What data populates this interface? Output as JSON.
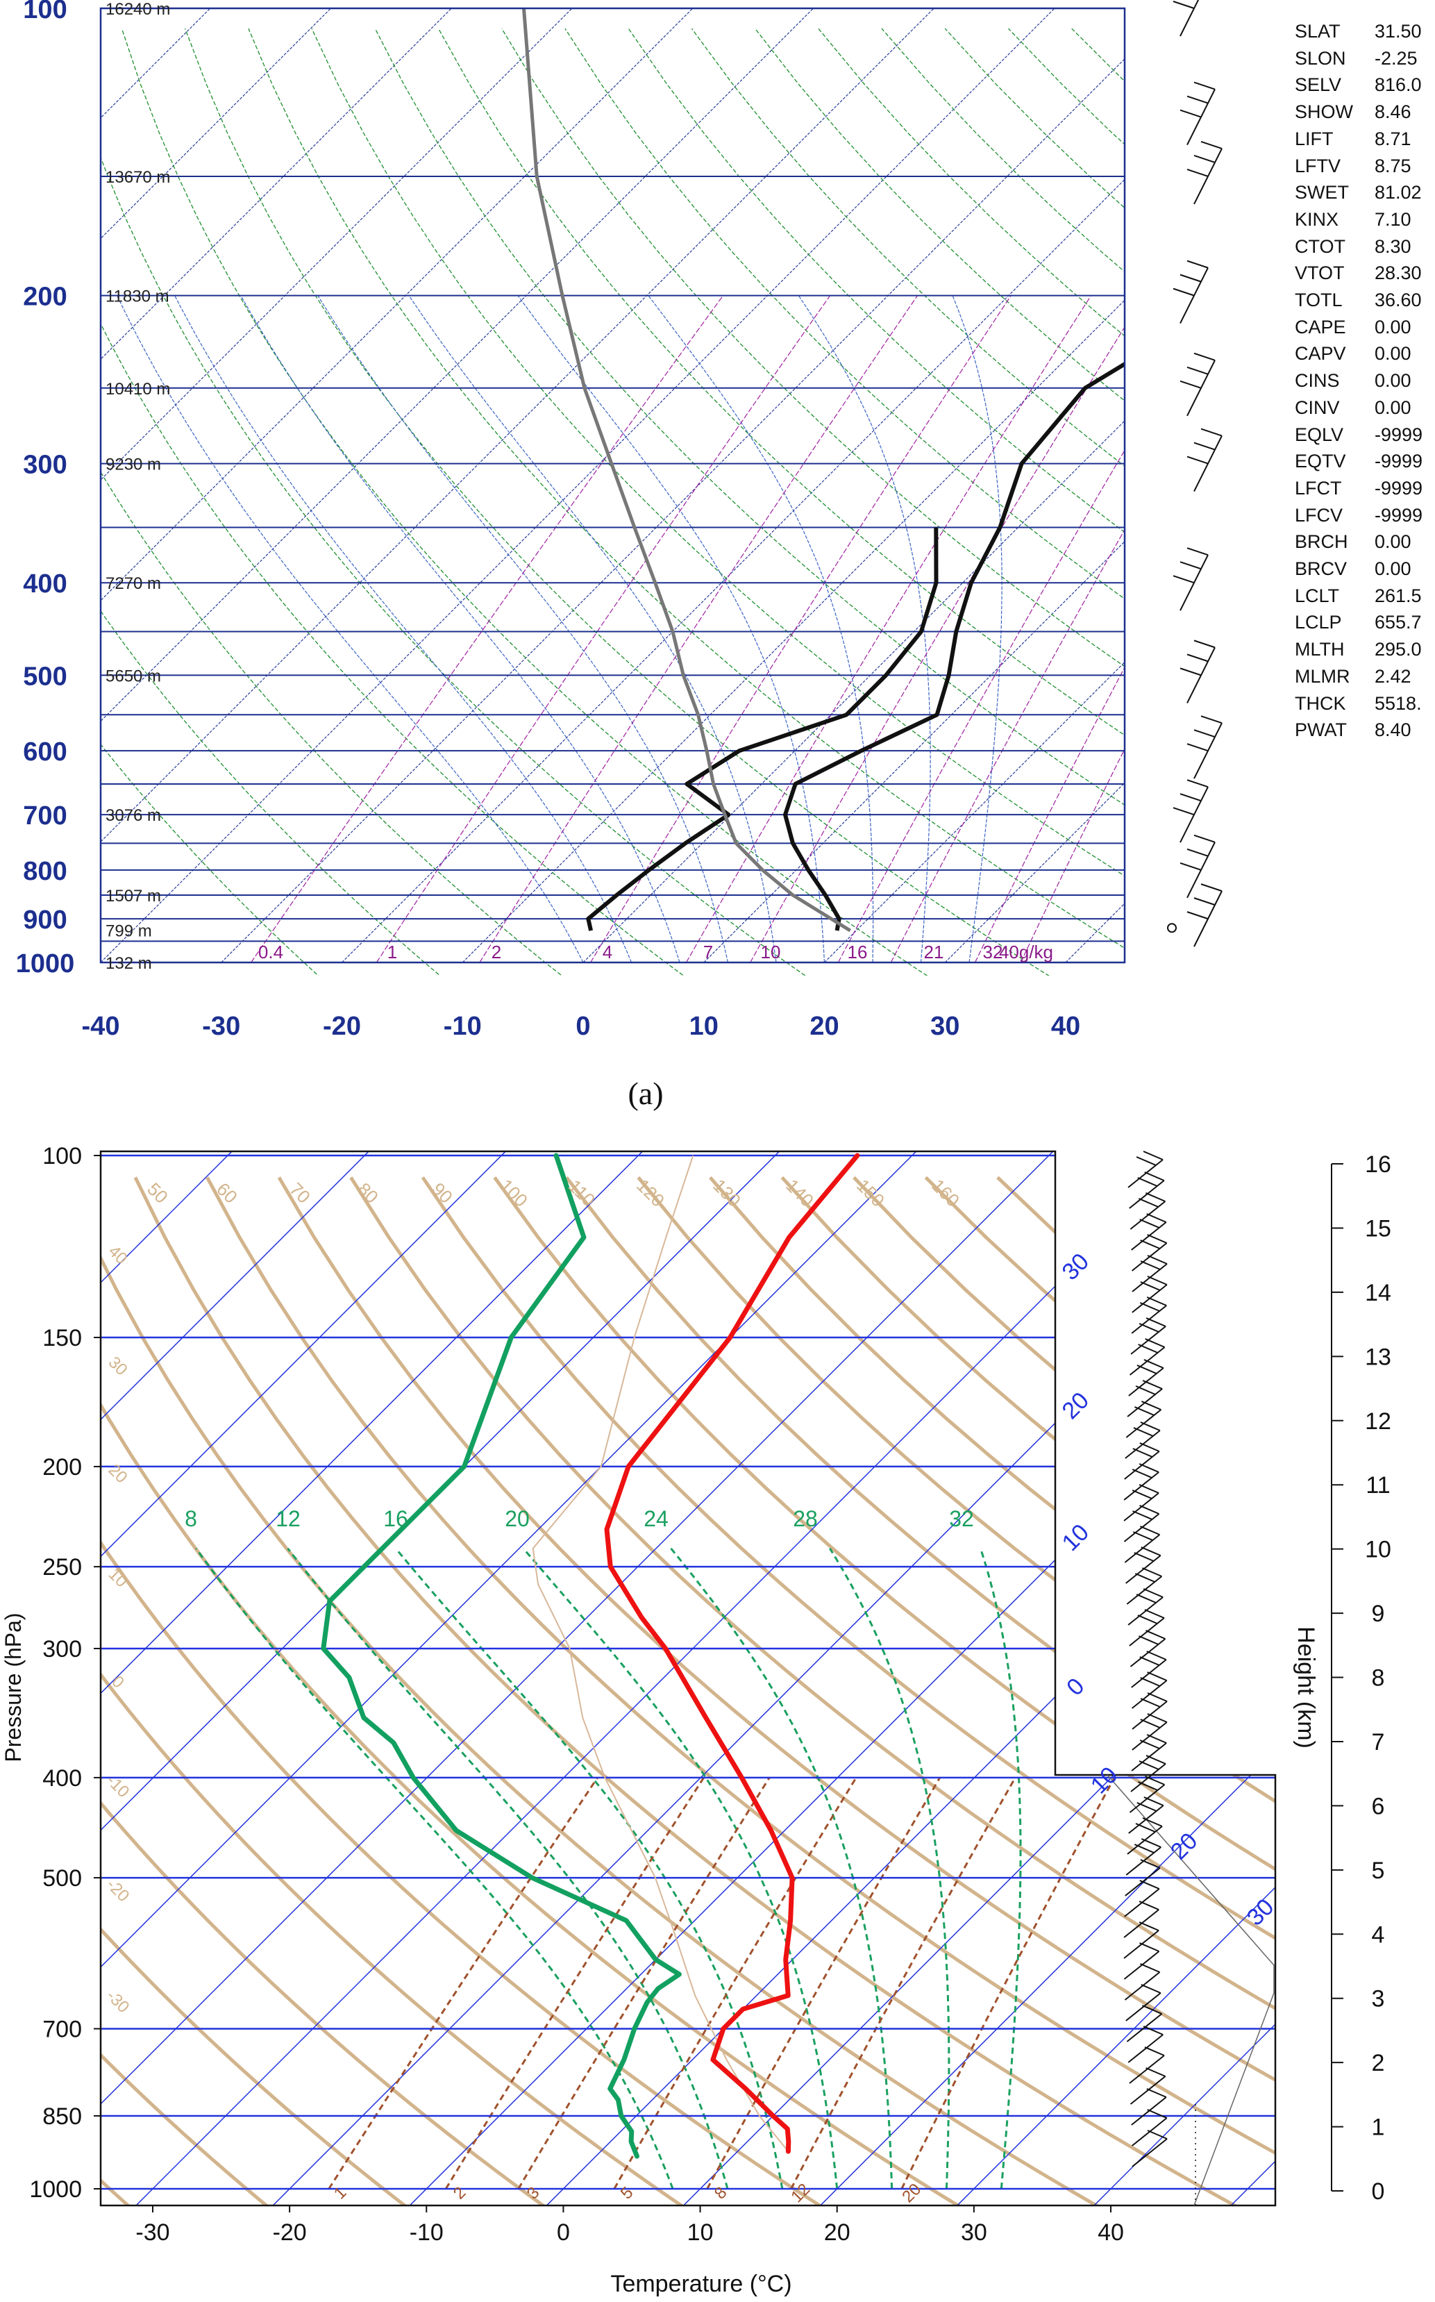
{
  "panel_a": {
    "caption": "(a)",
    "y_ticks": [
      "100",
      "200",
      "300",
      "400",
      "500",
      "600",
      "700",
      "800",
      "900",
      "1000"
    ],
    "x_ticks": [
      "-40",
      "-30",
      "-20",
      "-10",
      "0",
      "10",
      "20",
      "30",
      "40"
    ],
    "height_labels": [
      "16240 m",
      "13670 m",
      "11830 m",
      "10410 m",
      "9230 m",
      "7270 m",
      "5650 m",
      "3076 m",
      "1507 m",
      "799 m",
      "132 m"
    ],
    "mixing_labels": [
      "0.4",
      "1",
      "2",
      "4",
      "7",
      "10",
      "16",
      "21",
      "32",
      "40g/kg"
    ],
    "indices": [
      {
        "k": "SLAT",
        "v": "31.50"
      },
      {
        "k": "SLON",
        "v": "-2.25"
      },
      {
        "k": "SELV",
        "v": "816.0"
      },
      {
        "k": "SHOW",
        "v": "8.46"
      },
      {
        "k": "LIFT",
        "v": "8.71"
      },
      {
        "k": "LFTV",
        "v": "8.75"
      },
      {
        "k": "SWET",
        "v": "81.02"
      },
      {
        "k": "KINX",
        "v": "7.10"
      },
      {
        "k": "CTOT",
        "v": "8.30"
      },
      {
        "k": "VTOT",
        "v": "28.30"
      },
      {
        "k": "TOTL",
        "v": "36.60"
      },
      {
        "k": "CAPE",
        "v": "0.00"
      },
      {
        "k": "CAPV",
        "v": "0.00"
      },
      {
        "k": "CINS",
        "v": "0.00"
      },
      {
        "k": "CINV",
        "v": "0.00"
      },
      {
        "k": "EQLV",
        "v": "-9999"
      },
      {
        "k": "EQTV",
        "v": "-9999"
      },
      {
        "k": "LFCT",
        "v": "-9999"
      },
      {
        "k": "LFCV",
        "v": "-9999"
      },
      {
        "k": "BRCH",
        "v": "0.00"
      },
      {
        "k": "BRCV",
        "v": "0.00"
      },
      {
        "k": "LCLT",
        "v": "261.5"
      },
      {
        "k": "LCLP",
        "v": "655.7"
      },
      {
        "k": "MLTH",
        "v": "295.0"
      },
      {
        "k": "MLMR",
        "v": "2.42"
      },
      {
        "k": "THCK",
        "v": "5518."
      },
      {
        "k": "PWAT",
        "v": "8.40"
      }
    ]
  },
  "panel_b": {
    "y_ticks": [
      "100",
      "150",
      "200",
      "250",
      "300",
      "400",
      "500",
      "700",
      "850",
      "1000"
    ],
    "x_ticks": [
      "-30",
      "-20",
      "-10",
      "0",
      "10",
      "20",
      "30",
      "40"
    ],
    "ylabel": "Pressure (hPa)",
    "xlabel": "Temperature (°C)",
    "height_axis_label": "Height (km)",
    "height_ticks": [
      "16",
      "15",
      "14",
      "13",
      "12",
      "11",
      "10",
      "9",
      "8",
      "7",
      "6",
      "5",
      "4",
      "3",
      "2",
      "1",
      "0"
    ],
    "theta_labels": [
      "50",
      "60",
      "70",
      "80",
      "90",
      "100",
      "110",
      "120",
      "130",
      "140",
      "150",
      "160"
    ],
    "theta_left_labels": [
      "40",
      "30",
      "20",
      "10",
      "0",
      "-10",
      "-20",
      "-30"
    ],
    "theta_e_labels": [
      "8",
      "12",
      "16",
      "20",
      "24",
      "28",
      "32"
    ],
    "mixing_labels": [
      "1",
      "2",
      "3",
      "5",
      "8",
      "12",
      "20"
    ],
    "isotherm_labels": [
      "30",
      "20",
      "10",
      "0"
    ],
    "hodo_labels": [
      "10",
      "20",
      "30"
    ]
  },
  "chart_data": [
    {
      "type": "line",
      "subtype": "skew-T log-p diagram",
      "xlim": [
        -40,
        45
      ],
      "ylim": [
        1000,
        100
      ],
      "y_scale": "log",
      "grid": true,
      "series": [
        {
          "pressure": [
            926,
            900,
            850,
            800,
            750,
            700,
            650,
            600,
            550,
            500,
            450,
            400,
            350,
            300,
            250,
            200,
            150,
            100
          ],
          "values": [
            18.4,
            17.6,
            14.5,
            11,
            7.5,
            4.5,
            2.8,
            5.5,
            8.8,
            6.5,
            3.5,
            0.7,
            -1.5,
            -5,
            -6,
            -1,
            6,
            22.5
          ]
        },
        {
          "pressure": [
            926,
            900,
            850,
            800,
            750,
            700,
            650,
            600,
            550,
            500,
            450,
            400,
            350
          ],
          "values": [
            -2,
            -3.2,
            -2.8,
            -2.2,
            -1.4,
            -0.2,
            -6.2,
            -4.6,
            1.3,
            1.3,
            0.6,
            -2.2,
            -6.8
          ]
        },
        {
          "pressure": [
            926,
            850,
            800,
            750,
            700,
            650,
            600,
            550,
            500,
            450,
            400,
            350,
            300,
            250,
            200,
            150,
            100
          ],
          "values": [
            19.5,
            11.8,
            7.2,
            2.8,
            -0.5,
            -4,
            -7.3,
            -11,
            -15.5,
            -20,
            -25.5,
            -31.8,
            -39,
            -47.5,
            -57,
            -69,
            -84
          ]
        }
      ]
    },
    {
      "type": "line",
      "subtype": "skew-T log-p diagram",
      "xlim": [
        -34,
        52
      ],
      "ylim": [
        1000,
        100
      ],
      "y_scale": "log",
      "grid": true,
      "series": [
        {
          "pressure": [
            920,
            900,
            875,
            850,
            800,
            750,
            700,
            670,
            650,
            600,
            550,
            500,
            450,
            400,
            350,
            300,
            280,
            250,
            230,
            200,
            150,
            120,
            100
          ],
          "values": [
            13.7,
            13,
            12,
            10,
            6,
            1.5,
            0,
            0,
            2.3,
            -0.5,
            -3,
            -6,
            -11,
            -17,
            -24,
            -32,
            -36,
            -42,
            -45,
            -48,
            -50,
            -53,
            -54
          ]
        },
        {
          "pressure": [
            930,
            900,
            880,
            850,
            820,
            800,
            750,
            700,
            660,
            640,
            620,
            600,
            550,
            500,
            450,
            400,
            370,
            350,
            320,
            300,
            270,
            250,
            200,
            150,
            120,
            100
          ],
          "values": [
            3,
            1.5,
            0.8,
            -1.1,
            -2.5,
            -3.9,
            -5,
            -6.5,
            -7.5,
            -7.7,
            -7.2,
            -10,
            -15,
            -25,
            -34,
            -41,
            -45,
            -49,
            -53,
            -57,
            -60,
            -60,
            -60,
            -66,
            -68,
            -76
          ]
        }
      ]
    }
  ]
}
